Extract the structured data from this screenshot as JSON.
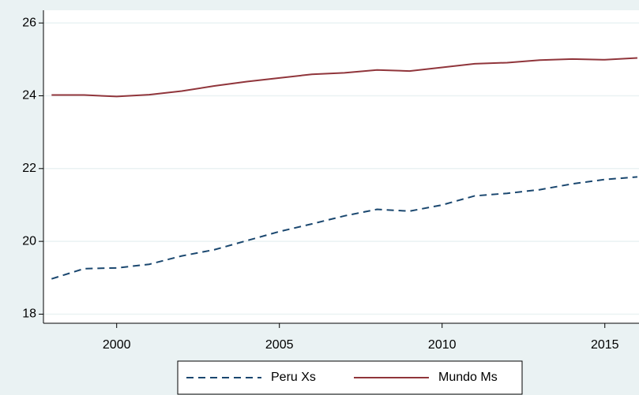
{
  "chart_data": {
    "type": "line",
    "x": [
      1998,
      1999,
      2000,
      2001,
      2002,
      2003,
      2004,
      2005,
      2006,
      2007,
      2008,
      2009,
      2010,
      2011,
      2012,
      2013,
      2014,
      2015,
      2016
    ],
    "series": [
      {
        "name": "Peru Xs",
        "color": "#1a476f",
        "dash": true,
        "values": [
          18.97,
          19.25,
          19.27,
          19.37,
          19.6,
          19.77,
          20.02,
          20.27,
          20.48,
          20.7,
          20.88,
          20.83,
          21.0,
          21.25,
          21.32,
          21.42,
          21.58,
          21.7,
          21.77
        ]
      },
      {
        "name": "Mundo Ms",
        "color": "#90353b",
        "dash": false,
        "values": [
          24.02,
          24.02,
          23.98,
          24.03,
          24.13,
          24.27,
          24.39,
          24.49,
          24.59,
          24.63,
          24.71,
          24.68,
          24.78,
          24.88,
          24.91,
          24.98,
          25.01,
          24.99,
          25.04
        ]
      }
    ],
    "xlim": [
      1997.75,
      2016.05
    ],
    "xticks": [
      2000,
      2005,
      2010,
      2015
    ],
    "ylim": [
      17.75,
      26.35
    ],
    "yticks": [
      18,
      20,
      22,
      24,
      26
    ],
    "grid": true
  }
}
